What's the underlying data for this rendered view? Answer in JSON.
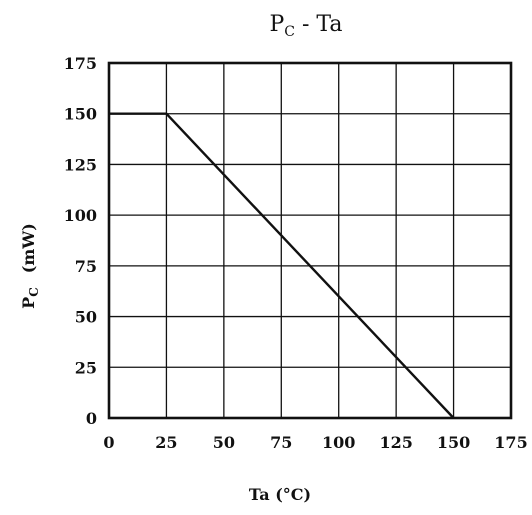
{
  "chart_data": {
    "type": "line",
    "title": {
      "main": "P",
      "sub": "C",
      "rest": " - Ta"
    },
    "xlabel": "Ta (°C)",
    "ylabel": {
      "main": "P",
      "sub": "C",
      "unit": "(mW)"
    },
    "xlim": [
      0,
      175
    ],
    "ylim": [
      0,
      175
    ],
    "xticks": [
      "0",
      "25",
      "50",
      "75",
      "100",
      "125",
      "150",
      "175"
    ],
    "yticks": [
      "0",
      "25",
      "50",
      "75",
      "100",
      "125",
      "150",
      "175"
    ],
    "grid": true,
    "series": [
      {
        "x": [
          0,
          25,
          150
        ],
        "y": [
          150,
          150,
          0
        ]
      }
    ],
    "colors": {
      "line": "#111111",
      "grid": "#111111",
      "frame": "#111111"
    }
  }
}
